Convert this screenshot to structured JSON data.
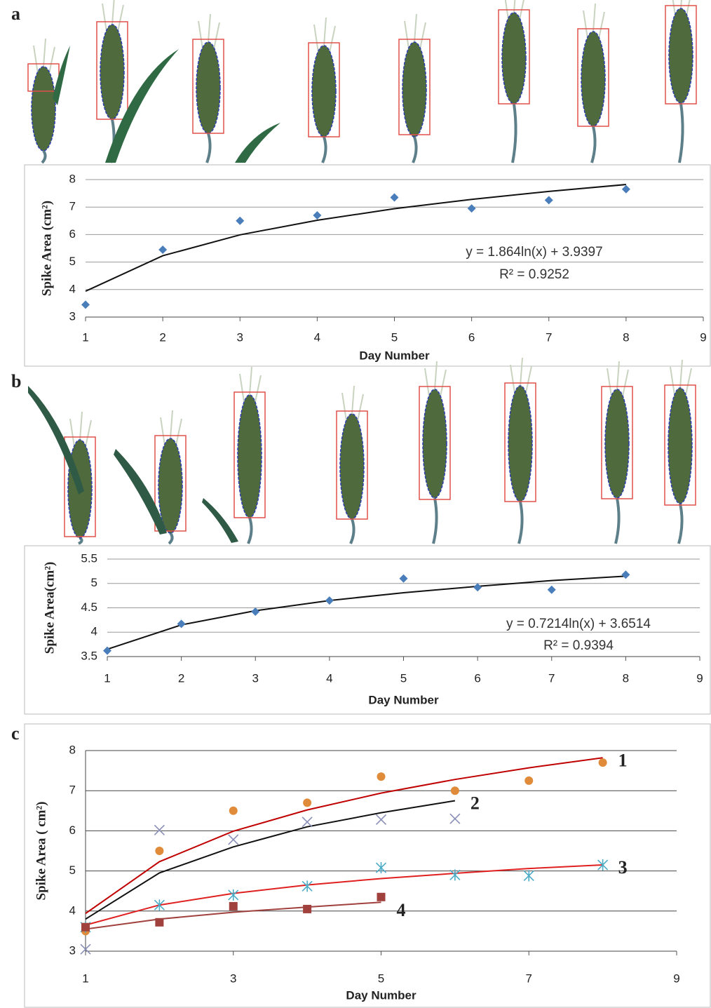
{
  "chart_data": [
    {
      "type": "scatter",
      "panel_label": "a",
      "xlabel": "Day Number",
      "ylabel": "Spike Area (cm²)",
      "x": [
        1,
        2,
        3,
        4,
        5,
        6,
        7,
        8
      ],
      "values": [
        3.45,
        5.45,
        6.5,
        6.7,
        7.35,
        6.95,
        7.25,
        7.65
      ],
      "color": "#4a7ebb",
      "marker": "diamond",
      "fit": {
        "color": "#111111",
        "x": [
          1,
          2,
          3,
          4,
          5,
          6,
          7,
          8
        ],
        "values": [
          3.94,
          5.23,
          5.99,
          6.52,
          6.94,
          7.28,
          7.57,
          7.82
        ]
      },
      "annotations": [
        "y = 1.864ln(x) + 3.9397",
        "R² = 0.9252"
      ],
      "xlim": [
        1,
        9
      ],
      "xticks": [
        1,
        2,
        3,
        4,
        5,
        6,
        7,
        8,
        9
      ],
      "ylim": [
        3,
        8
      ],
      "yticks": [
        3,
        4,
        5,
        6,
        7,
        8
      ],
      "grid": true
    },
    {
      "type": "scatter",
      "panel_label": "b",
      "xlabel": "Day Number",
      "ylabel": "Spike Area(cm²)",
      "x": [
        1,
        2,
        3,
        4,
        5,
        6,
        7,
        8
      ],
      "values": [
        3.62,
        4.17,
        4.42,
        4.65,
        5.1,
        4.92,
        4.87,
        5.18
      ],
      "color": "#4a7ebb",
      "marker": "diamond",
      "fit": {
        "color": "#111111",
        "x": [
          1,
          2,
          3,
          4,
          5,
          6,
          7,
          8
        ],
        "values": [
          3.65,
          4.15,
          4.44,
          4.65,
          4.81,
          4.94,
          5.06,
          5.15
        ]
      },
      "annotations": [
        "y = 0.7214ln(x) + 3.6514",
        "R² = 0.9394"
      ],
      "xlim": [
        1,
        9
      ],
      "xticks": [
        1,
        2,
        3,
        4,
        5,
        6,
        7,
        8,
        9
      ],
      "ylim": [
        3.5,
        5.5
      ],
      "yticks": [
        3.5,
        4,
        4.5,
        5,
        5.5
      ],
      "grid": true
    },
    {
      "type": "scatter",
      "panel_label": "c",
      "xlabel": "Day Number",
      "ylabel": "Spike Area ( cm²)",
      "series": [
        {
          "name": "1",
          "color": "#e08b3a",
          "marker": "circle",
          "x": [
            1,
            2,
            3,
            4,
            5,
            6,
            7,
            8
          ],
          "values": [
            3.5,
            5.5,
            6.5,
            6.7,
            7.35,
            7.0,
            7.25,
            7.7
          ],
          "fit": {
            "color": "#c00000",
            "x": [
              1,
              2,
              3,
              4,
              5,
              6,
              7,
              8
            ],
            "values": [
              3.94,
              5.23,
              5.99,
              6.52,
              6.94,
              7.28,
              7.57,
              7.82
            ]
          }
        },
        {
          "name": "2",
          "color": "#8a8fb8",
          "marker": "cross",
          "x": [
            1,
            2,
            3,
            4,
            5,
            6
          ],
          "values": [
            3.05,
            6.02,
            5.78,
            6.22,
            6.28,
            6.3
          ],
          "fit": {
            "color": "#111111",
            "x": [
              1,
              2,
              3,
              4,
              5,
              6
            ],
            "values": [
              3.8,
              4.95,
              5.6,
              6.1,
              6.45,
              6.75
            ]
          }
        },
        {
          "name": "3",
          "color": "#4bacc6",
          "marker": "asterisk",
          "x": [
            1,
            2,
            3,
            4,
            5,
            6,
            7,
            8
          ],
          "values": [
            3.6,
            4.15,
            4.4,
            4.62,
            5.08,
            4.9,
            4.88,
            5.15
          ],
          "fit": {
            "color": "#e02020",
            "x": [
              1,
              2,
              3,
              4,
              5,
              6,
              7,
              8
            ],
            "values": [
              3.65,
              4.15,
              4.44,
              4.65,
              4.81,
              4.94,
              5.06,
              5.15
            ]
          }
        },
        {
          "name": "4",
          "color": "#a0413e",
          "marker": "square",
          "x": [
            1,
            2,
            3,
            4,
            5
          ],
          "values": [
            3.6,
            3.72,
            4.12,
            4.05,
            4.35
          ],
          "fit": {
            "color": "#a0413e",
            "x": [
              1,
              2,
              3,
              4,
              5
            ],
            "values": [
              3.55,
              3.8,
              3.97,
              4.1,
              4.22
            ]
          }
        }
      ],
      "xlim": [
        1,
        9
      ],
      "xticks": [
        1,
        3,
        5,
        7,
        9
      ],
      "ylim": [
        3,
        8
      ],
      "yticks": [
        3,
        4,
        5,
        6,
        7,
        8
      ],
      "grid": true
    }
  ]
}
